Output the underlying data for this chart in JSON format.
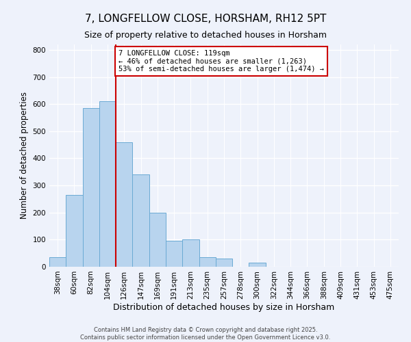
{
  "title": "7, LONGFELLOW CLOSE, HORSHAM, RH12 5PT",
  "subtitle": "Size of property relative to detached houses in Horsham",
  "xlabel": "Distribution of detached houses by size in Horsham",
  "ylabel": "Number of detached properties",
  "bar_labels": [
    "38sqm",
    "60sqm",
    "82sqm",
    "104sqm",
    "126sqm",
    "147sqm",
    "169sqm",
    "191sqm",
    "213sqm",
    "235sqm",
    "257sqm",
    "278sqm",
    "300sqm",
    "322sqm",
    "344sqm",
    "366sqm",
    "388sqm",
    "409sqm",
    "431sqm",
    "453sqm",
    "475sqm"
  ],
  "bar_values": [
    35,
    265,
    585,
    610,
    460,
    340,
    200,
    95,
    100,
    35,
    30,
    0,
    15,
    0,
    0,
    0,
    0,
    0,
    0,
    0,
    0
  ],
  "bar_color": "#b8d4ee",
  "bar_edge_color": "#6aaad4",
  "vline_color": "#cc0000",
  "vline_x_index": 3.5,
  "annotation_text": "7 LONGFELLOW CLOSE: 119sqm\n← 46% of detached houses are smaller (1,263)\n53% of semi-detached houses are larger (1,474) →",
  "annotation_box_color": "#ffffff",
  "annotation_box_edge": "#cc0000",
  "ylim": [
    0,
    820
  ],
  "yticks": [
    0,
    100,
    200,
    300,
    400,
    500,
    600,
    700,
    800
  ],
  "footer1": "Contains HM Land Registry data © Crown copyright and database right 2025.",
  "footer2": "Contains public sector information licensed under the Open Government Licence v3.0.",
  "bg_color": "#eef2fb",
  "grid_color": "#ffffff"
}
